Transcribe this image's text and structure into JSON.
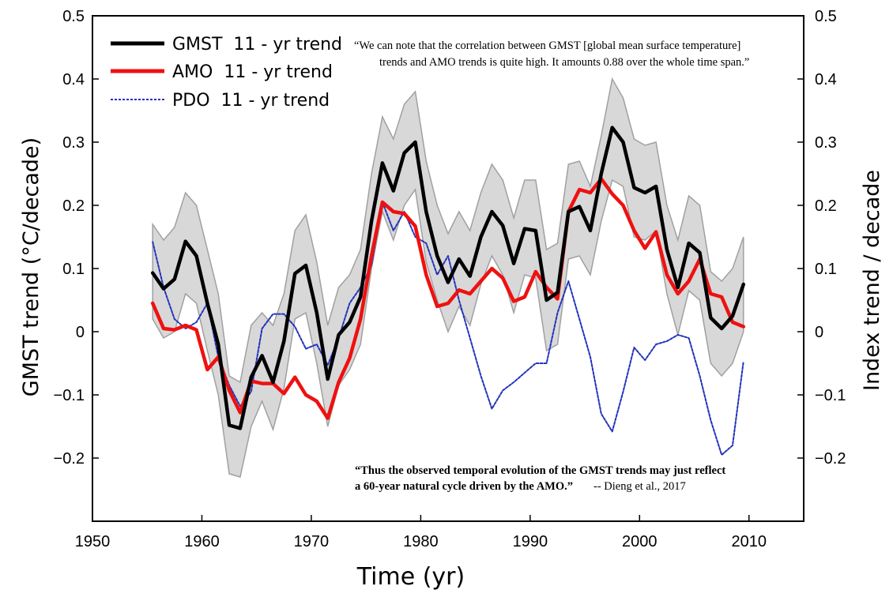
{
  "chart_data": {
    "type": "line",
    "xlabel": "Time (yr)",
    "ylabel_left": "GMST trend (°C/decade)",
    "ylabel_right": "Index trend / decade",
    "xlim": [
      1950,
      2015
    ],
    "ylim": [
      -0.3,
      0.5
    ],
    "x_ticks": [
      "1950",
      "1960",
      "1970",
      "1980",
      "1990",
      "2000",
      "2010"
    ],
    "y_ticks_left": [
      "0.5",
      "0.4",
      "0.3",
      "0.2",
      "0.1",
      "0",
      "−0.1",
      "−0.2"
    ],
    "y_ticks_right": [
      "0.5",
      "0.4",
      "0.3",
      "0.2",
      "0.1",
      "0",
      "−0.1",
      "−0.2"
    ],
    "x": [
      1955.5,
      1956.5,
      1957.5,
      1958.5,
      1959.5,
      1960.5,
      1961.5,
      1962.5,
      1963.5,
      1964.5,
      1965.5,
      1966.5,
      1967.5,
      1968.5,
      1969.5,
      1970.5,
      1971.5,
      1972.5,
      1973.5,
      1974.5,
      1975.5,
      1976.5,
      1977.5,
      1978.5,
      1979.5,
      1980.5,
      1981.5,
      1982.5,
      1983.5,
      1984.5,
      1985.5,
      1986.5,
      1987.5,
      1988.5,
      1989.5,
      1990.5,
      1991.5,
      1992.5,
      1993.5,
      1994.5,
      1995.5,
      1996.5,
      1997.5,
      1998.5,
      1999.5,
      2000.5,
      2001.5,
      2002.5,
      2003.5,
      2004.5,
      2005.5,
      2006.5,
      2007.5,
      2008.5,
      2009.5
    ],
    "series": [
      {
        "name": "GMST  11 - yr trend",
        "color": "#000000",
        "values": [
          0.093,
          0.068,
          0.083,
          0.143,
          0.12,
          0.045,
          -0.02,
          -0.148,
          -0.153,
          -0.072,
          -0.038,
          -0.08,
          -0.015,
          0.092,
          0.105,
          0.03,
          -0.075,
          -0.005,
          0.015,
          0.055,
          0.175,
          0.267,
          0.223,
          0.283,
          0.3,
          0.19,
          0.12,
          0.078,
          0.115,
          0.088,
          0.15,
          0.19,
          0.168,
          0.108,
          0.163,
          0.16,
          0.05,
          0.062,
          0.19,
          0.198,
          0.16,
          0.25,
          0.323,
          0.3,
          0.228,
          0.22,
          0.23,
          0.13,
          0.07,
          0.14,
          0.125,
          0.022,
          0.005,
          0.025,
          0.075
        ]
      },
      {
        "name": "AMO  11 - yr trend",
        "color": "#ee1111",
        "values": [
          0.045,
          0.005,
          0.003,
          0.01,
          0.003,
          -0.06,
          -0.04,
          -0.093,
          -0.128,
          -0.078,
          -0.082,
          -0.082,
          -0.098,
          -0.072,
          -0.1,
          -0.11,
          -0.137,
          -0.08,
          -0.042,
          0.02,
          0.12,
          0.205,
          0.19,
          0.187,
          0.167,
          0.09,
          0.04,
          0.045,
          0.066,
          0.06,
          0.08,
          0.1,
          0.085,
          0.048,
          0.055,
          0.095,
          0.07,
          0.052,
          0.19,
          0.225,
          0.22,
          0.242,
          0.218,
          0.2,
          0.16,
          0.132,
          0.158,
          0.09,
          0.06,
          0.08,
          0.115,
          0.06,
          0.055,
          0.015,
          0.008
        ]
      },
      {
        "name": "PDO  11 - yr trend",
        "color": "#2233bb",
        "values": [
          0.142,
          0.07,
          0.02,
          0.005,
          0.015,
          0.045,
          -0.04,
          -0.085,
          -0.118,
          -0.095,
          0.005,
          0.028,
          0.028,
          0.008,
          -0.027,
          -0.02,
          -0.053,
          -0.01,
          0.045,
          0.07,
          0.105,
          0.205,
          0.16,
          0.19,
          0.15,
          0.14,
          0.09,
          0.12,
          0.05,
          -0.01,
          -0.07,
          -0.122,
          -0.093,
          -0.08,
          -0.065,
          -0.05,
          -0.05,
          0.03,
          0.08,
          0.02,
          -0.04,
          -0.13,
          -0.158,
          -0.095,
          -0.025,
          -0.045,
          -0.02,
          -0.015,
          -0.005,
          -0.01,
          -0.07,
          -0.14,
          -0.195,
          -0.18,
          -0.047
        ]
      }
    ],
    "band": {
      "color": "#d8d8d8",
      "upper": [
        0.17,
        0.145,
        0.165,
        0.22,
        0.2,
        0.13,
        0.06,
        -0.07,
        -0.08,
        0.01,
        0.03,
        0.01,
        0.06,
        0.16,
        0.185,
        0.11,
        0.01,
        0.07,
        0.09,
        0.13,
        0.25,
        0.34,
        0.305,
        0.36,
        0.38,
        0.27,
        0.2,
        0.155,
        0.19,
        0.16,
        0.22,
        0.265,
        0.24,
        0.18,
        0.24,
        0.24,
        0.13,
        0.14,
        0.265,
        0.27,
        0.23,
        0.31,
        0.4,
        0.37,
        0.305,
        0.295,
        0.3,
        0.2,
        0.145,
        0.215,
        0.2,
        0.095,
        0.08,
        0.1,
        0.15
      ],
      "lower": [
        0.02,
        -0.01,
        0.0,
        0.06,
        0.045,
        -0.03,
        -0.1,
        -0.225,
        -0.23,
        -0.15,
        -0.11,
        -0.155,
        -0.09,
        0.02,
        0.03,
        -0.05,
        -0.15,
        -0.085,
        -0.06,
        -0.02,
        0.1,
        0.19,
        0.145,
        0.2,
        0.225,
        0.11,
        0.05,
        0.0,
        0.04,
        0.01,
        0.075,
        0.12,
        0.09,
        0.03,
        0.09,
        0.085,
        -0.03,
        -0.02,
        0.115,
        0.12,
        0.09,
        0.175,
        0.24,
        0.23,
        0.15,
        0.145,
        0.16,
        0.06,
        -0.005,
        0.065,
        0.05,
        -0.05,
        -0.07,
        -0.05,
        0.0
      ]
    },
    "legend": {
      "placement": "top-left",
      "entries": [
        "GMST  11 - yr trend",
        "AMO  11 - yr trend",
        "PDO  11 - yr trend"
      ]
    },
    "annotations": {
      "quote_top_line1": "“We can note that the correlation between GMST [global mean surface temperature]",
      "quote_top_line2": "trends and AMO trends is quite high. It amounts 0.88 over the whole time span.”",
      "quote_bottom_line1": "“Thus the observed temporal evolution of the GMST trends may just reflect",
      "quote_bottom_line2": "a 60-year natural cycle driven by the AMO.”",
      "quote_bottom_cite": "-- Dieng et al., 2017"
    },
    "grid": false
  }
}
